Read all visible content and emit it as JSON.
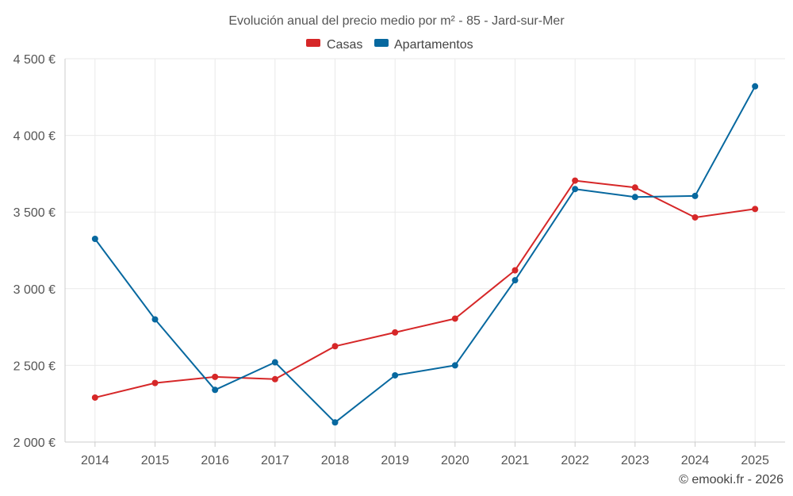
{
  "chart_data": {
    "type": "line",
    "title": "Evolución anual del precio medio por m² - 85 - Jard-sur-Mer",
    "categories": [
      "2014",
      "2015",
      "2016",
      "2017",
      "2018",
      "2019",
      "2020",
      "2021",
      "2022",
      "2023",
      "2024",
      "2025"
    ],
    "series": [
      {
        "name": "Casas",
        "color": "#d62728",
        "values": [
          2290,
          2385,
          2425,
          2410,
          2625,
          2715,
          2805,
          3120,
          3705,
          3660,
          3465,
          3520
        ]
      },
      {
        "name": "Apartamentos",
        "color": "#07689f",
        "values": [
          3325,
          2800,
          2340,
          2520,
          2128,
          2435,
          2500,
          3055,
          3650,
          3598,
          3605,
          4320
        ]
      }
    ],
    "ylim": [
      2000,
      4500
    ],
    "y_ticks": [
      2000,
      2500,
      3000,
      3500,
      4000,
      4500
    ],
    "y_tick_labels": [
      "2 000 €",
      "2 500 €",
      "3 000 €",
      "3 500 €",
      "4 000 €",
      "4 500 €"
    ],
    "xlabel": "",
    "ylabel": "",
    "grid": true,
    "legend_position": "top-center"
  },
  "credit": "© emooki.fr - 2026"
}
